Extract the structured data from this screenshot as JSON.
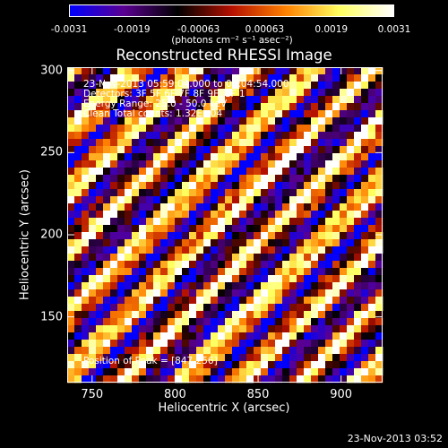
{
  "colorbar": {
    "ticks": [
      "-0.0031",
      "-0.0019",
      "-0.00063",
      "0.00063",
      "0.0019",
      "0.0031"
    ],
    "values": [
      -0.0031,
      -0.0019,
      -0.00063,
      0.00063,
      0.0019,
      0.0031
    ],
    "min": -0.0031,
    "max": 0.0031,
    "colors": [
      "#0000ff",
      "#5a0090",
      "#000000",
      "#b41000",
      "#ff8000",
      "#ffff60",
      "#ffffff"
    ]
  },
  "chart_data": {
    "type": "heatmap",
    "title": "Reconstructed RHESSI Image",
    "xlabel": "Heliocentric X (arcsec)",
    "ylabel": "Heliocentric Y (arcsec)",
    "xlim": [
      735,
      925
    ],
    "ylim": [
      110,
      302
    ],
    "x_ticks": [
      750,
      800,
      850,
      900
    ],
    "y_ticks": [
      150,
      200,
      250,
      300
    ],
    "colorbar_label": "(photons cm⁻² s⁻¹ asec⁻²)",
    "annotations": [
      "23-Nov-2013 05:59:04.000 to 06:04:54.000",
      "Detectors: 3F 5F 6F 7F 8F 9F, 1F 1",
      "Energy Range: 25.0 - 50.0 keV",
      "Clean     Total counts: 1.32E+04",
      "Position of Peak = [847,256]"
    ],
    "peak": [
      847,
      256
    ],
    "grid": false
  },
  "footer": "23-Nov-2013 03:52"
}
